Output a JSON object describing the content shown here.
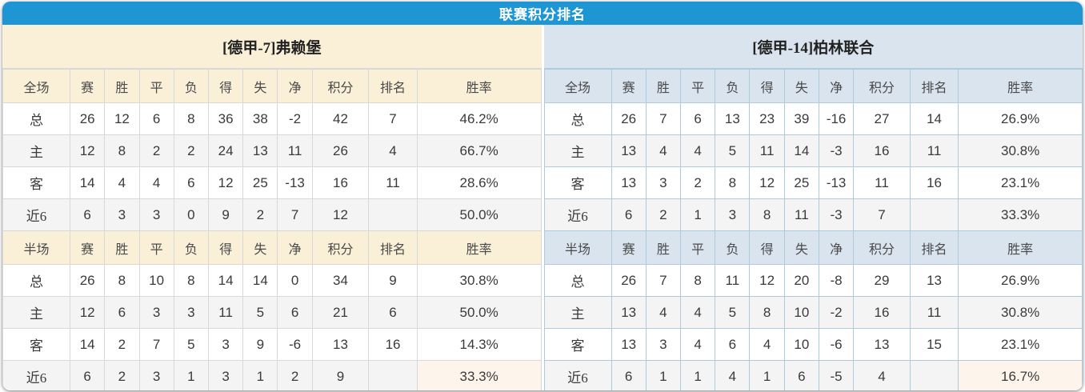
{
  "title": "联赛积分排名",
  "columns": {
    "scope_full": "全场",
    "scope_half": "半场",
    "stats": [
      "赛",
      "胜",
      "平",
      "负",
      "得",
      "失",
      "净"
    ],
    "points": "积分",
    "rank": "排名",
    "win_rate": "胜率"
  },
  "teams": [
    {
      "name": "[德甲-7]弗赖堡",
      "full": [
        {
          "label": "总",
          "type": "total",
          "stats": [
            26,
            12,
            6,
            8,
            36,
            38,
            -2
          ],
          "points": 42,
          "rank": "7",
          "win_rate": "46.2%"
        },
        {
          "label": "主",
          "type": "home",
          "stats": [
            12,
            8,
            2,
            2,
            24,
            13,
            11
          ],
          "points": 26,
          "rank": "4",
          "win_rate": "66.7%"
        },
        {
          "label": "客",
          "type": "away",
          "stats": [
            14,
            4,
            4,
            6,
            12,
            25,
            -13
          ],
          "points": 16,
          "rank": "11",
          "win_rate": "28.6%"
        },
        {
          "label": "近6",
          "type": "last6",
          "stats": [
            6,
            3,
            3,
            0,
            9,
            2,
            7
          ],
          "points": 12,
          "rank": "",
          "win_rate": "50.0%"
        }
      ],
      "half": [
        {
          "label": "总",
          "type": "total",
          "stats": [
            26,
            8,
            10,
            8,
            14,
            14,
            0
          ],
          "points": 34,
          "rank": "9",
          "win_rate": "30.8%"
        },
        {
          "label": "主",
          "type": "home",
          "stats": [
            12,
            6,
            3,
            3,
            11,
            5,
            6
          ],
          "points": 21,
          "rank": "6",
          "win_rate": "50.0%"
        },
        {
          "label": "客",
          "type": "away",
          "stats": [
            14,
            2,
            7,
            5,
            3,
            9,
            -6
          ],
          "points": 13,
          "rank": "16",
          "win_rate": "14.3%"
        },
        {
          "label": "近6",
          "type": "last6",
          "stats": [
            6,
            2,
            3,
            1,
            3,
            1,
            2
          ],
          "points": 9,
          "rank": "",
          "win_rate": "33.3%"
        }
      ]
    },
    {
      "name": "[德甲-14]柏林联合",
      "full": [
        {
          "label": "总",
          "type": "total",
          "stats": [
            26,
            7,
            6,
            13,
            23,
            39,
            -16
          ],
          "points": 27,
          "rank": "14",
          "win_rate": "26.9%"
        },
        {
          "label": "主",
          "type": "home",
          "stats": [
            13,
            4,
            4,
            5,
            11,
            14,
            -3
          ],
          "points": 16,
          "rank": "11",
          "win_rate": "30.8%"
        },
        {
          "label": "客",
          "type": "away",
          "stats": [
            13,
            3,
            2,
            8,
            12,
            25,
            -13
          ],
          "points": 11,
          "rank": "16",
          "win_rate": "23.1%"
        },
        {
          "label": "近6",
          "type": "last6",
          "stats": [
            6,
            2,
            1,
            3,
            8,
            11,
            -3
          ],
          "points": 7,
          "rank": "",
          "win_rate": "33.3%"
        }
      ],
      "half": [
        {
          "label": "总",
          "type": "total",
          "stats": [
            26,
            7,
            8,
            11,
            12,
            20,
            -8
          ],
          "points": 29,
          "rank": "13",
          "win_rate": "26.9%"
        },
        {
          "label": "主",
          "type": "home",
          "stats": [
            13,
            4,
            4,
            5,
            8,
            10,
            -2
          ],
          "points": 16,
          "rank": "11",
          "win_rate": "30.8%"
        },
        {
          "label": "客",
          "type": "away",
          "stats": [
            13,
            3,
            4,
            6,
            4,
            10,
            -6
          ],
          "points": 13,
          "rank": "15",
          "win_rate": "23.1%"
        },
        {
          "label": "近6",
          "type": "last6",
          "stats": [
            6,
            1,
            1,
            4,
            1,
            6,
            -5
          ],
          "points": 4,
          "rank": "",
          "win_rate": "16.7%"
        }
      ]
    }
  ],
  "colors": {
    "title_blue": "#1e96d3",
    "left_header": "#faf0d8",
    "right_header": "#dae4ee",
    "row_alt": "#f4f4f4",
    "border_left": "#d8d8d8",
    "border_right": "#aecbdd",
    "accent_red": "#fa462d",
    "rank_blue": "#3f8ad8",
    "home_red": "#e8282f",
    "away_blue": "#5b57e8",
    "warm_cell": "#fdf4ec"
  }
}
